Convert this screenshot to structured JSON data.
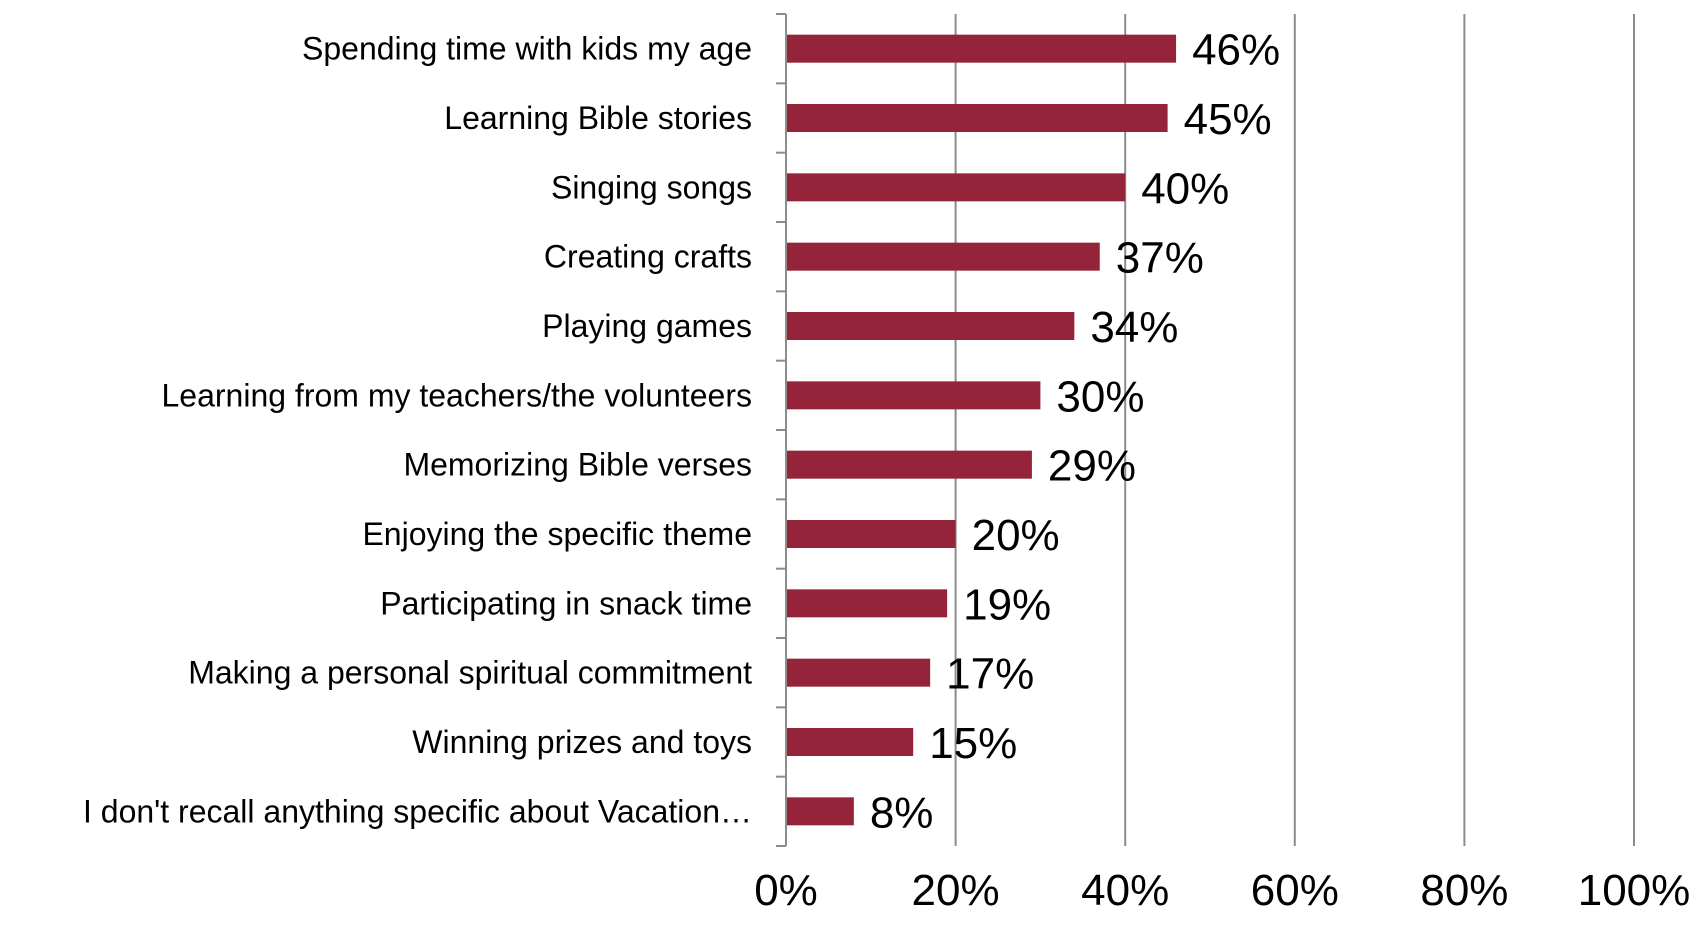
{
  "chart_data": {
    "type": "bar",
    "orientation": "horizontal",
    "categories": [
      "Spending time with kids my age",
      "Learning Bible stories",
      "Singing songs",
      "Creating crafts",
      "Playing games",
      "Learning from my teachers/the volunteers",
      "Memorizing Bible verses",
      "Enjoying the specific theme",
      "Participating in snack time",
      "Making a personal spiritual commitment",
      "Winning prizes and toys",
      "I don't recall anything specific about Vacation…"
    ],
    "values": [
      46,
      45,
      40,
      37,
      34,
      30,
      29,
      20,
      19,
      17,
      15,
      8
    ],
    "value_labels": [
      "46%",
      "45%",
      "40%",
      "37%",
      "34%",
      "30%",
      "29%",
      "20%",
      "19%",
      "17%",
      "15%",
      "8%"
    ],
    "xlim": [
      0,
      100
    ],
    "x_ticks": [
      0,
      20,
      40,
      60,
      80,
      100
    ],
    "x_tick_labels": [
      "0%",
      "20%",
      "40%",
      "60%",
      "80%",
      "100%"
    ],
    "grid": "vertical",
    "legend": "none",
    "bar_color": "#95233a",
    "grid_color": "#8c8c8c"
  }
}
